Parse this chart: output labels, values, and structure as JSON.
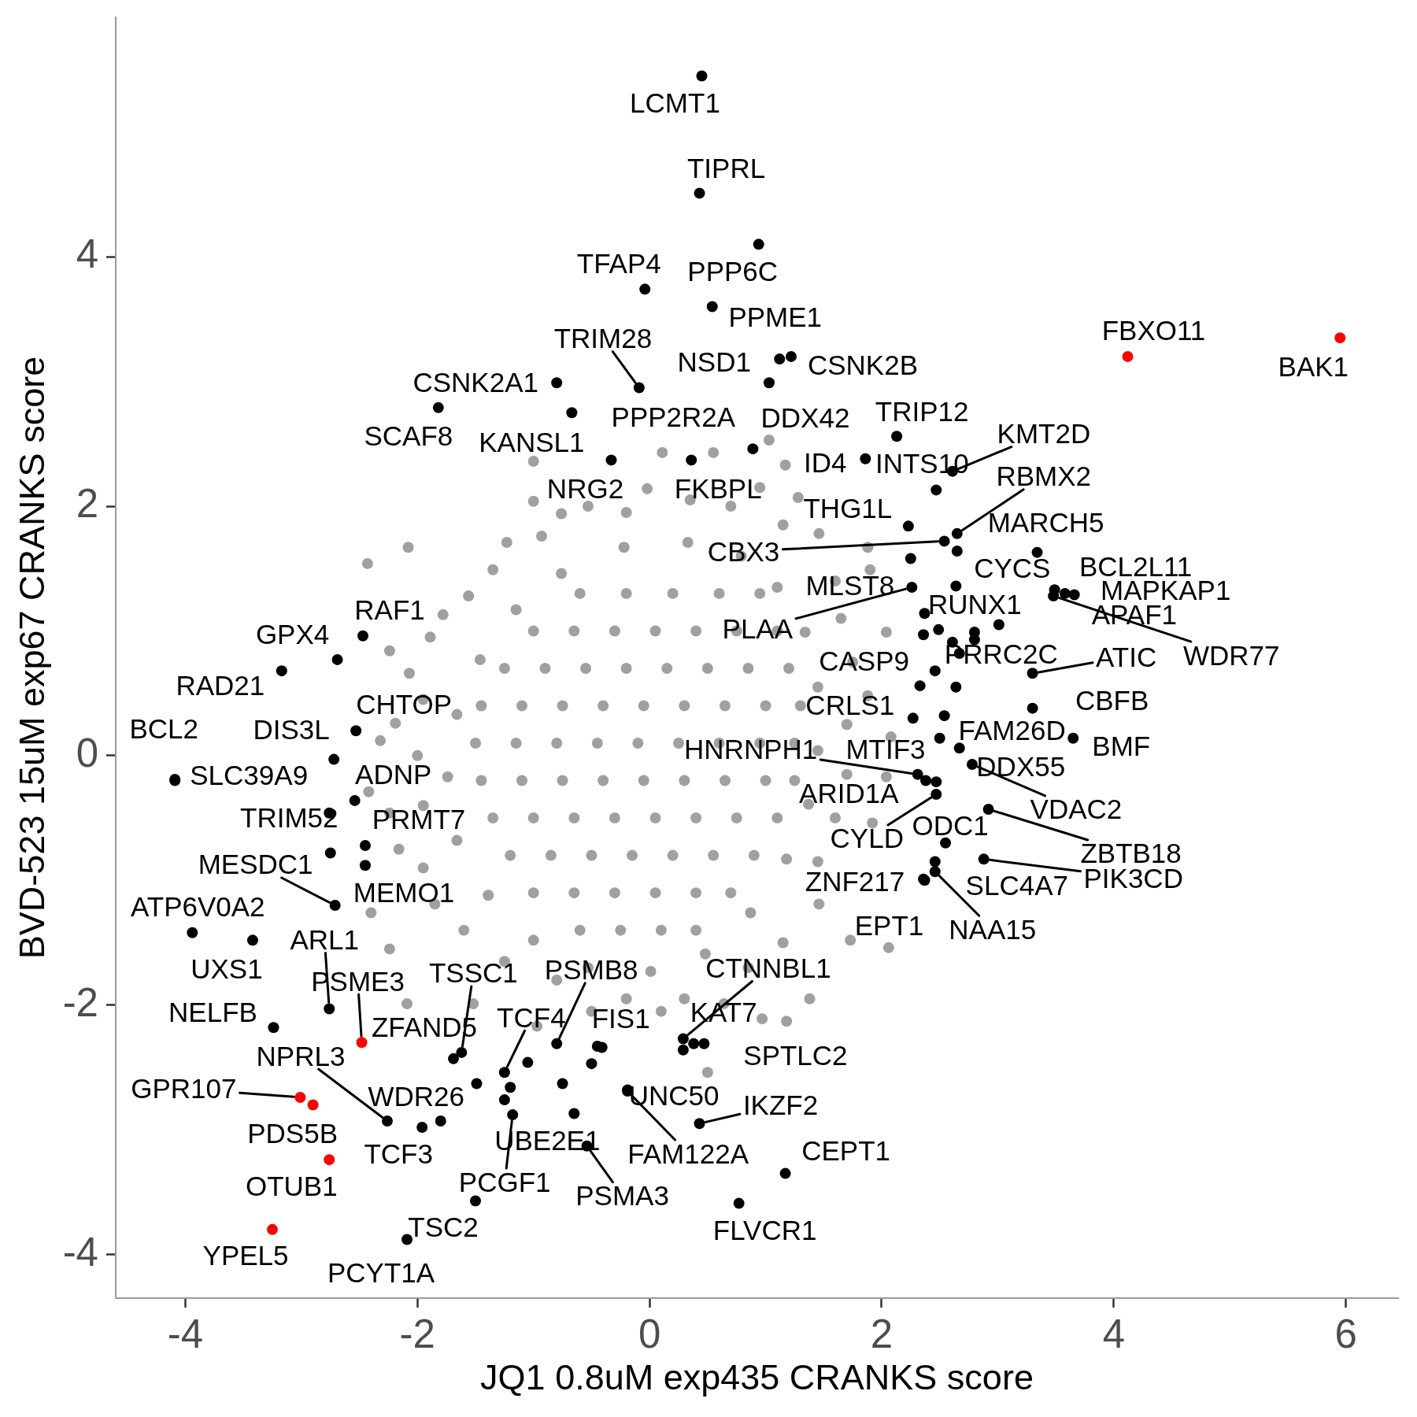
{
  "chart_data": {
    "type": "scatter",
    "xlabel": "JQ1 0.8uM exp435 CRANKS score",
    "ylabel": "BVD-523 15uM exp67 CRANKS score",
    "xlim": [
      -4.6,
      6.45
    ],
    "ylim": [
      -4.35,
      5.92
    ],
    "xticks": [
      -4,
      -2,
      0,
      2,
      4,
      6
    ],
    "yticks": [
      -4,
      -2,
      0,
      2,
      4
    ],
    "marker": "circle",
    "series": [
      {
        "color": "#a0a0a0",
        "x": [
          0.33,
          0.79,
          1.1,
          1.34,
          1.45,
          1.45,
          1.37,
          1.18,
          0.87,
          0.48,
          0.01,
          -0.53,
          -1,
          -1.39,
          -1.66,
          -1.74,
          -1.66,
          -1.46,
          -1.15,
          -0.76,
          -0.22,
          -0.6,
          -0.2,
          0.2,
          0.6,
          0.95,
          -1,
          -0.65,
          -0.3,
          0.05,
          0.4,
          0.75,
          1.1,
          -1.25,
          -0.9,
          -0.55,
          -0.2,
          0.15,
          0.5,
          0.85,
          1.2,
          -1.45,
          -1.1,
          -0.75,
          -0.4,
          -0.05,
          0.3,
          0.65,
          1,
          1.3,
          -1.5,
          -1.15,
          -0.8,
          -0.45,
          -0.1,
          0.25,
          0.6,
          0.95,
          1.25,
          -1.45,
          -1.1,
          -0.75,
          -0.4,
          -0.05,
          0.3,
          0.65,
          1,
          1.25,
          -1.35,
          -1,
          -0.65,
          -0.3,
          0.05,
          0.4,
          0.75,
          1.1,
          -1.2,
          -0.85,
          -0.5,
          -0.15,
          0.2,
          0.55,
          0.9,
          -1,
          -0.65,
          -0.3,
          0.05,
          0.4,
          0.7,
          -0.6,
          -0.25,
          0.1,
          0.4,
          -1,
          -0.76,
          -0.93,
          -0.53,
          -0.2,
          -0.02,
          0.11,
          0.35,
          0.55,
          0.7,
          0.95,
          1.03,
          1.17,
          1.28,
          1.15,
          1.46,
          1.6,
          1.88,
          1.9,
          1.65,
          2.04,
          1.75,
          1.88,
          1.7,
          2.08,
          1.7,
          2.04,
          1.6,
          1.92,
          1.45,
          1.73,
          2.06,
          1.46,
          1.15,
          1.38,
          1.18,
          0.97,
          0.85,
          0.64,
          0.5,
          0.3,
          0.1,
          -0.2,
          -0.5,
          -0.97,
          -0.8,
          -1.25,
          -1.52,
          -1.6,
          -1.85,
          -2.09,
          -2.24,
          -2.4,
          -1.95,
          -2.16,
          -1.95,
          -2.24,
          -2.42,
          -2,
          -2.32,
          -2.19,
          -1.95,
          -2.07,
          -2.24,
          -1.89,
          -1.78,
          -1.56,
          -1.35,
          -1.23,
          -2.08,
          -2.43,
          -1
        ],
        "values": [
          1.71,
          1.6,
          1.35,
          0.99,
          0.55,
          0.04,
          -0.39,
          -0.83,
          -1.26,
          -1.59,
          -1.73,
          -1.7,
          -1.48,
          -1.12,
          -0.68,
          -0.17,
          0.33,
          0.77,
          1.17,
          1.46,
          1.67,
          1.3,
          1.3,
          1.3,
          1.3,
          1.3,
          1,
          1,
          1,
          1,
          1,
          1,
          1,
          0.7,
          0.7,
          0.7,
          0.7,
          0.7,
          0.7,
          0.7,
          0.7,
          0.4,
          0.4,
          0.4,
          0.4,
          0.4,
          0.4,
          0.4,
          0.4,
          0.4,
          0.1,
          0.1,
          0.1,
          0.1,
          0.1,
          0.1,
          0.1,
          0.1,
          0.1,
          -0.2,
          -0.2,
          -0.2,
          -0.2,
          -0.2,
          -0.2,
          -0.2,
          -0.2,
          -0.2,
          -0.5,
          -0.5,
          -0.5,
          -0.5,
          -0.5,
          -0.5,
          -0.5,
          -0.5,
          -0.8,
          -0.8,
          -0.8,
          -0.8,
          -0.8,
          -0.8,
          -0.8,
          -1.1,
          -1.1,
          -1.1,
          -1.1,
          -1.1,
          -1.1,
          -1.4,
          -1.4,
          -1.4,
          -1.4,
          2.36,
          1.94,
          1.76,
          2,
          1.95,
          2.14,
          2.43,
          2.05,
          2.43,
          2,
          2.15,
          2.53,
          2.33,
          2.07,
          1.85,
          1.78,
          1.4,
          1.67,
          1.49,
          1.1,
          0.99,
          0.75,
          0.48,
          0.25,
          0.15,
          -0.15,
          -0.17,
          -0.5,
          -0.54,
          -0.85,
          -1.48,
          -1.54,
          -1.19,
          -1.5,
          -1.95,
          -2.13,
          -2.11,
          -1.7,
          -1.99,
          -2.54,
          -1.95,
          -2.05,
          -1.95,
          -2.05,
          -2.17,
          -1.8,
          -1.65,
          -1.99,
          -1.4,
          -1.19,
          -1.99,
          -1.55,
          -1.26,
          -0.9,
          -0.75,
          -0.4,
          -0.46,
          -0.29,
          0,
          0.12,
          0.26,
          0.45,
          0.66,
          0.84,
          0.95,
          1.13,
          1.28,
          1.49,
          1.71,
          1.67,
          1.54,
          2.04
        ]
      },
      {
        "color": "#000000",
        "x": [
          0.45,
          0.43,
          0.94,
          -0.04,
          0.54,
          1.12,
          1.22,
          1.03,
          -0.09,
          -0.8,
          -1.82,
          -0.67,
          -0.33,
          0.36,
          0.89,
          2.13,
          1.86,
          2.61,
          2.47,
          2.23,
          2.65,
          2.54,
          3.34,
          2.65,
          2.25,
          2.26,
          2.64,
          3.49,
          3.58,
          3.66,
          3.48,
          2.33,
          2.67,
          3.3,
          2.27,
          2.54,
          3.3,
          3.65,
          2.67,
          2.78,
          2.31,
          2.38,
          2.47,
          2.47,
          2.55,
          2.92,
          2.88,
          2.46,
          2.46,
          2.36,
          2.37,
          -2.47,
          -2.69,
          -3.17,
          -2.53,
          -2.72,
          -4.09,
          -4.09,
          -2.54,
          -2.76,
          -2.45,
          -2.45,
          -2.71,
          -3.94,
          -3.42,
          -2.76,
          -3.24,
          -1.62,
          -1.69,
          -2.26,
          -1.8,
          -1.96,
          -2.09,
          -1.5,
          -1.18,
          -0.8,
          -1.25,
          -0.41,
          0.29,
          0.38,
          0.47,
          -0.19,
          -0.19,
          0.43,
          1.17,
          0.77,
          -0.54,
          -0.65,
          -1.49,
          -1.2,
          -1.25,
          -1.05,
          -0.75,
          -0.5,
          -0.45,
          0.29,
          -2.75,
          3.01,
          2.8,
          2.8,
          2.49,
          2.37,
          2.36,
          2.61,
          2.46,
          2.64,
          2.5
        ],
        "values": [
          5.45,
          4.51,
          4.1,
          3.74,
          3.6,
          3.18,
          3.2,
          2.99,
          2.95,
          2.99,
          2.79,
          2.75,
          2.37,
          2.37,
          2.46,
          2.56,
          2.38,
          2.28,
          2.13,
          1.84,
          1.78,
          1.72,
          1.63,
          1.64,
          1.58,
          1.35,
          1.36,
          1.33,
          1.3,
          1.29,
          1.28,
          0.56,
          0.82,
          0.66,
          0.3,
          0.32,
          0.38,
          0.14,
          0.06,
          -0.07,
          -0.15,
          -0.2,
          -0.21,
          -0.31,
          -0.7,
          -0.43,
          -0.83,
          -0.85,
          -0.93,
          -0.99,
          -1,
          0.96,
          0.77,
          0.68,
          0.2,
          -0.03,
          -0.19,
          -0.2,
          -0.36,
          -0.46,
          -0.72,
          -0.88,
          -1.2,
          -1.42,
          -1.48,
          -2.03,
          -2.18,
          -2.38,
          -2.43,
          -2.93,
          -2.93,
          -2.98,
          -3.88,
          -3.57,
          -2.88,
          -2.31,
          -2.54,
          -2.34,
          -2.27,
          -2.31,
          -2.31,
          -2.68,
          -2.69,
          -2.95,
          -3.35,
          -3.59,
          -3.13,
          -2.87,
          -2.63,
          -2.66,
          -2.76,
          -2.46,
          -2.63,
          -2.47,
          -2.33,
          -2.36,
          -0.78,
          1.05,
          0.99,
          0.93,
          1.01,
          1.14,
          0.97,
          0.91,
          0.68,
          0.55,
          0.14
        ]
      },
      {
        "color": "#ff0000",
        "x": [
          4.12,
          5.95,
          -2.48,
          -3.01,
          -2.9,
          -2.76,
          -3.25
        ],
        "values": [
          3.2,
          3.35,
          -2.3,
          -2.74,
          -2.8,
          -3.24,
          -3.8
        ]
      }
    ],
    "annotations": [
      {
        "text": "LCMT1",
        "x": 0.45,
        "y": 5.45
      },
      {
        "text": "TIPRL",
        "x": 0.43,
        "y": 4.51
      },
      {
        "text": "PPP6C",
        "x": 0.94,
        "y": 4.1
      },
      {
        "text": "TFAP4",
        "x": -0.04,
        "y": 3.74
      },
      {
        "text": "PPME1",
        "x": 0.54,
        "y": 3.6
      },
      {
        "text": "NSD1",
        "x": 1.12,
        "y": 3.18
      },
      {
        "text": "CSNK2B",
        "x": 1.22,
        "y": 3.2
      },
      {
        "text": "DDX42",
        "x": 1.03,
        "y": 2.99
      },
      {
        "text": "TRIM28",
        "x": -0.09,
        "y": 2.95
      },
      {
        "text": "CSNK2A1",
        "x": -0.8,
        "y": 2.99
      },
      {
        "text": "SCAF8",
        "x": -1.82,
        "y": 2.79
      },
      {
        "text": "KANSL1",
        "x": -0.67,
        "y": 2.75
      },
      {
        "text": "NRG2",
        "x": -0.33,
        "y": 2.37
      },
      {
        "text": "FKBPL",
        "x": 0.36,
        "y": 2.37
      },
      {
        "text": "PPP2R2A",
        "x": 0.89,
        "y": 2.46
      },
      {
        "text": "FBXO11",
        "x": 4.12,
        "y": 3.2
      },
      {
        "text": "BAK1",
        "x": 5.95,
        "y": 3.35
      },
      {
        "text": "TRIP12",
        "x": 2.13,
        "y": 2.56
      },
      {
        "text": "ID4",
        "x": 1.86,
        "y": 2.38
      },
      {
        "text": "KMT2D",
        "x": 2.61,
        "y": 2.28
      },
      {
        "text": "INTS10",
        "x": 2.47,
        "y": 2.13
      },
      {
        "text": "THG1L",
        "x": 2.23,
        "y": 1.84
      },
      {
        "text": "RBMX2",
        "x": 2.65,
        "y": 1.78
      },
      {
        "text": "CBX3",
        "x": 2.54,
        "y": 1.72
      },
      {
        "text": "MARCH5",
        "x": 3.34,
        "y": 1.63
      },
      {
        "text": "CYCS",
        "x": 2.65,
        "y": 1.64
      },
      {
        "text": "MLST8",
        "x": 2.25,
        "y": 1.58
      },
      {
        "text": "PLAA",
        "x": 2.26,
        "y": 1.35
      },
      {
        "text": "RUNX1",
        "x": 2.64,
        "y": 1.36
      },
      {
        "text": "BCL2L11",
        "x": 3.49,
        "y": 1.33
      },
      {
        "text": "APAF1",
        "x": 3.58,
        "y": 1.3
      },
      {
        "text": "MAPKAP1",
        "x": 3.66,
        "y": 1.29
      },
      {
        "text": "WDR77",
        "x": 3.48,
        "y": 1.28
      },
      {
        "text": "CASP9",
        "x": 2.33,
        "y": 0.56
      },
      {
        "text": "PRRC2C",
        "x": 2.67,
        "y": 0.82
      },
      {
        "text": "ATIC",
        "x": 3.3,
        "y": 0.66
      },
      {
        "text": "CRLS1",
        "x": 2.27,
        "y": 0.3
      },
      {
        "text": "FAM26D",
        "x": 2.54,
        "y": 0.32
      },
      {
        "text": "CBFB",
        "x": 3.3,
        "y": 0.38
      },
      {
        "text": "BMF",
        "x": 3.65,
        "y": 0.14
      },
      {
        "text": "DDX55",
        "x": 2.67,
        "y": 0.06
      },
      {
        "text": "VDAC2",
        "x": 2.78,
        "y": -0.07
      },
      {
        "text": "HNRNPH1",
        "x": 2.31,
        "y": -0.15
      },
      {
        "text": "MTIF3",
        "x": 2.38,
        "y": -0.2
      },
      {
        "text": "ARID1A",
        "x": 2.47,
        "y": -0.21
      },
      {
        "text": "CYLD",
        "x": 2.47,
        "y": -0.31
      },
      {
        "text": "ODC1",
        "x": 2.55,
        "y": -0.7
      },
      {
        "text": "ZBTB18",
        "x": 2.92,
        "y": -0.43
      },
      {
        "text": "PIK3CD",
        "x": 2.88,
        "y": -0.83
      },
      {
        "text": "SLC4A7",
        "x": 2.46,
        "y": -0.85
      },
      {
        "text": "NAA15",
        "x": 2.46,
        "y": -0.93
      },
      {
        "text": "ZNF217",
        "x": 2.36,
        "y": -0.99
      },
      {
        "text": "EPT1",
        "x": 2.37,
        "y": -1
      },
      {
        "text": "RAF1",
        "x": -2.47,
        "y": 0.96
      },
      {
        "text": "GPX4",
        "x": -2.69,
        "y": 0.77
      },
      {
        "text": "RAD21",
        "x": -3.17,
        "y": 0.68
      },
      {
        "text": "CHTOP",
        "x": -2.53,
        "y": 0.2
      },
      {
        "text": "DIS3L",
        "x": -2.72,
        "y": -0.03
      },
      {
        "text": "BCL2",
        "x": -4.09,
        "y": -0.19
      },
      {
        "text": "SLC39A9",
        "x": -4.09,
        "y": -0.2
      },
      {
        "text": "ADNP",
        "x": -2.54,
        "y": -0.36
      },
      {
        "text": "TRIM52",
        "x": -2.76,
        "y": -0.46
      },
      {
        "text": "PRMT7",
        "x": -2.45,
        "y": -0.72
      },
      {
        "text": "MEMO1",
        "x": -2.45,
        "y": -0.88
      },
      {
        "text": "MESDC1",
        "x": -2.71,
        "y": -1.2
      },
      {
        "text": "ATP6V0A2",
        "x": -3.94,
        "y": -1.42
      },
      {
        "text": "UXS1",
        "x": -3.42,
        "y": -1.48
      },
      {
        "text": "ARL1",
        "x": -2.76,
        "y": -2.03
      },
      {
        "text": "PSME3",
        "x": -2.48,
        "y": -2.3
      },
      {
        "text": "NELFB",
        "x": -3.24,
        "y": -2.18
      },
      {
        "text": "TSSC1",
        "x": -1.62,
        "y": -2.38
      },
      {
        "text": "ZFAND5",
        "x": -1.69,
        "y": -2.43
      },
      {
        "text": "NPRL3",
        "x": -2.26,
        "y": -2.93
      },
      {
        "text": "WDR26",
        "x": -1.8,
        "y": -2.93
      },
      {
        "text": "TCF3",
        "x": -1.96,
        "y": -2.98
      },
      {
        "text": "GPR107",
        "x": -3.01,
        "y": -2.74
      },
      {
        "text": "PDS5B",
        "x": -2.9,
        "y": -2.8
      },
      {
        "text": "OTUB1",
        "x": -2.76,
        "y": -3.24
      },
      {
        "text": "YPEL5",
        "x": -3.25,
        "y": -3.8
      },
      {
        "text": "PCYT1A",
        "x": -2.09,
        "y": -3.88
      },
      {
        "text": "TSC2",
        "x": -1.5,
        "y": -3.57
      },
      {
        "text": "PCGF1",
        "x": -1.18,
        "y": -2.88
      },
      {
        "text": "PSMB8",
        "x": -0.8,
        "y": -2.31
      },
      {
        "text": "TCF4",
        "x": -1.25,
        "y": -2.54
      },
      {
        "text": "FIS1",
        "x": -0.41,
        "y": -2.34
      },
      {
        "text": "CTNNBL1",
        "x": 0.29,
        "y": -2.27
      },
      {
        "text": "KAT7",
        "x": 0.38,
        "y": -2.31
      },
      {
        "text": "SPTLC2",
        "x": 0.47,
        "y": -2.31
      },
      {
        "text": "UNC50",
        "x": -0.19,
        "y": -2.68
      },
      {
        "text": "FAM122A",
        "x": -0.19,
        "y": -2.69
      },
      {
        "text": "IKZF2",
        "x": 0.43,
        "y": -2.95
      },
      {
        "text": "CEPT1",
        "x": 1.17,
        "y": -3.35
      },
      {
        "text": "FLVCR1",
        "x": 0.77,
        "y": -3.59
      },
      {
        "text": "PSMA3",
        "x": -0.54,
        "y": -3.13
      },
      {
        "text": "UBE2E1",
        "x": -0.65,
        "y": -2.87
      }
    ]
  }
}
